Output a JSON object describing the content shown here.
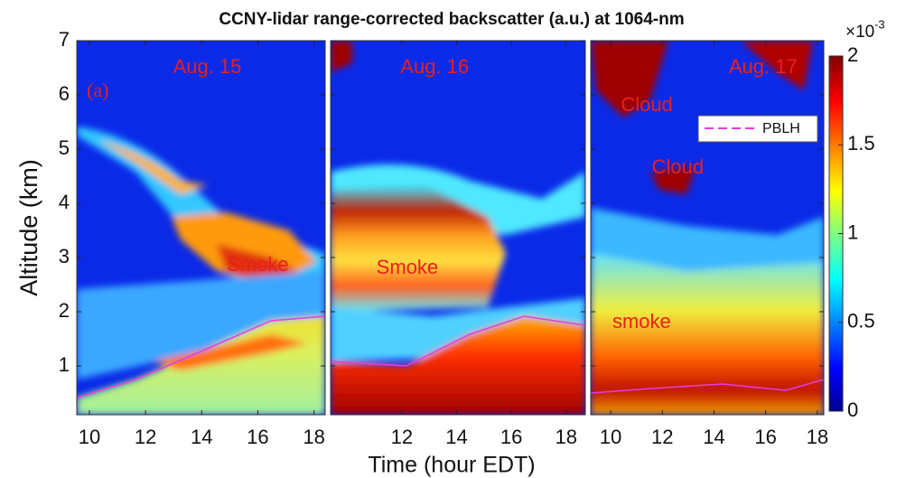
{
  "chart_data": {
    "type": "heatmap",
    "title": "CCNY-lidar range-corrected backscatter (a.u.) at 1064-nm",
    "ylabel": "Altitude (km)",
    "xlabel": "Time (hour EDT)",
    "ylim": [
      0.1,
      7
    ],
    "yticks": [
      1,
      2,
      3,
      4,
      5,
      6,
      7
    ],
    "panels": [
      {
        "xlim": [
          9.55,
          18.4
        ],
        "xticks": [
          10,
          12,
          14,
          16,
          18
        ],
        "annotations": [
          {
            "text": "Aug. 15",
            "x": 14.2,
            "y": 6.5
          },
          {
            "text": "(a)",
            "x": 10.3,
            "y": 6.05
          },
          {
            "text": "Smoke",
            "x": 16,
            "y": 2.85
          }
        ]
      },
      {
        "xlim": [
          9.4,
          18.7
        ],
        "xticks": [
          12,
          14,
          16,
          18
        ],
        "annotations": [
          {
            "text": "Aug. 16",
            "x": 13.2,
            "y": 6.5
          },
          {
            "text": "Smoke",
            "x": 12.2,
            "y": 2.8
          }
        ]
      },
      {
        "xlim": [
          9.23,
          18.25
        ],
        "xticks": [
          10,
          12,
          14,
          16,
          18
        ],
        "annotations": [
          {
            "text": "Aug. 17",
            "x": 15.9,
            "y": 6.5
          },
          {
            "text": "Cloud",
            "x": 11.4,
            "y": 5.8
          },
          {
            "text": "Cloud",
            "x": 12.6,
            "y": 4.65
          },
          {
            "text": "smoke",
            "x": 11.2,
            "y": 1.8
          }
        ]
      }
    ],
    "colorbar": {
      "lim": [
        0,
        2
      ],
      "ticks": [
        0,
        0.5,
        1,
        1.5,
        2
      ],
      "multiplier": "×10",
      "exponent": "-3"
    },
    "legend": {
      "name": "PBLH",
      "color": "#e040e0"
    }
  }
}
